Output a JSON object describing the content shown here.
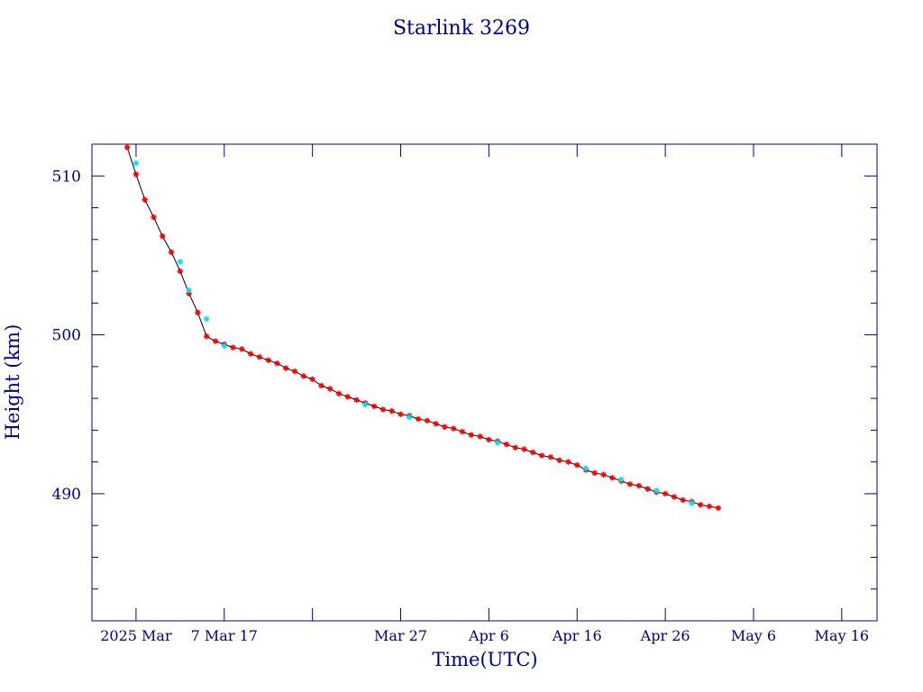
{
  "chart_data": {
    "type": "scatter",
    "title": "Starlink 3269",
    "xlabel": "Time(UTC)",
    "ylabel": "Height (km)",
    "x_unit": "date",
    "xlim": [
      "2025-02-20",
      "2025-05-20"
    ],
    "ylim": [
      482,
      512
    ],
    "x_ticks": [
      {
        "date": "2025-02-25",
        "label": "2025 Mar"
      },
      {
        "date": "2025-03-07",
        "label": "7 Mar 17"
      },
      {
        "date": "2025-03-17",
        "label": ""
      },
      {
        "date": "2025-03-27",
        "label": "Mar 27"
      },
      {
        "date": "2025-04-06",
        "label": "Apr  6"
      },
      {
        "date": "2025-04-16",
        "label": "Apr 16"
      },
      {
        "date": "2025-04-26",
        "label": "Apr 26"
      },
      {
        "date": "2025-05-06",
        "label": "May  6"
      },
      {
        "date": "2025-05-16",
        "label": "May 16"
      }
    ],
    "y_ticks": [
      490,
      500,
      510
    ],
    "y_minor_step": 2,
    "grid": false,
    "colors": {
      "frame": "#00008b",
      "text": "#00008b",
      "line": "#000000",
      "marker_main": "#ff0000",
      "marker_alt": "#00e5ee"
    },
    "series": [
      {
        "marker": "asterisk",
        "color": "#ff0000",
        "points": [
          [
            "2025-02-24",
            511.8
          ],
          [
            "2025-02-25",
            510.1
          ],
          [
            "2025-02-26",
            508.5
          ],
          [
            "2025-02-27",
            507.4
          ],
          [
            "2025-02-28",
            506.2
          ],
          [
            "2025-03-01",
            505.2
          ],
          [
            "2025-03-02",
            504.0
          ],
          [
            "2025-03-03",
            502.6
          ],
          [
            "2025-03-04",
            501.4
          ],
          [
            "2025-03-05",
            499.9
          ],
          [
            "2025-03-06",
            499.6
          ],
          [
            "2025-03-07",
            499.4
          ],
          [
            "2025-03-08",
            499.2
          ],
          [
            "2025-03-09",
            499.1
          ],
          [
            "2025-03-10",
            498.8
          ],
          [
            "2025-03-11",
            498.6
          ],
          [
            "2025-03-12",
            498.4
          ],
          [
            "2025-03-13",
            498.2
          ],
          [
            "2025-03-14",
            497.9
          ],
          [
            "2025-03-15",
            497.7
          ],
          [
            "2025-03-16",
            497.4
          ],
          [
            "2025-03-17",
            497.2
          ],
          [
            "2025-03-18",
            496.8
          ],
          [
            "2025-03-19",
            496.6
          ],
          [
            "2025-03-20",
            496.3
          ],
          [
            "2025-03-21",
            496.1
          ],
          [
            "2025-03-22",
            495.9
          ],
          [
            "2025-03-23",
            495.7
          ],
          [
            "2025-03-24",
            495.5
          ],
          [
            "2025-03-25",
            495.3
          ],
          [
            "2025-03-26",
            495.2
          ],
          [
            "2025-03-27",
            495.0
          ],
          [
            "2025-03-28",
            494.9
          ],
          [
            "2025-03-29",
            494.7
          ],
          [
            "2025-03-30",
            494.6
          ],
          [
            "2025-03-31",
            494.4
          ],
          [
            "2025-04-01",
            494.2
          ],
          [
            "2025-04-02",
            494.1
          ],
          [
            "2025-04-03",
            493.9
          ],
          [
            "2025-04-04",
            493.7
          ],
          [
            "2025-04-05",
            493.6
          ],
          [
            "2025-04-06",
            493.4
          ],
          [
            "2025-04-07",
            493.3
          ],
          [
            "2025-04-08",
            493.1
          ],
          [
            "2025-04-09",
            492.9
          ],
          [
            "2025-04-10",
            492.8
          ],
          [
            "2025-04-11",
            492.6
          ],
          [
            "2025-04-12",
            492.4
          ],
          [
            "2025-04-13",
            492.3
          ],
          [
            "2025-04-14",
            492.1
          ],
          [
            "2025-04-15",
            492.0
          ],
          [
            "2025-04-16",
            491.8
          ],
          [
            "2025-04-17",
            491.5
          ],
          [
            "2025-04-18",
            491.3
          ],
          [
            "2025-04-19",
            491.2
          ],
          [
            "2025-04-20",
            491.0
          ],
          [
            "2025-04-21",
            490.8
          ],
          [
            "2025-04-22",
            490.6
          ],
          [
            "2025-04-23",
            490.5
          ],
          [
            "2025-04-24",
            490.3
          ],
          [
            "2025-04-25",
            490.1
          ],
          [
            "2025-04-26",
            490.0
          ],
          [
            "2025-04-27",
            489.8
          ],
          [
            "2025-04-28",
            489.6
          ],
          [
            "2025-04-29",
            489.5
          ],
          [
            "2025-04-30",
            489.3
          ],
          [
            "2025-05-01",
            489.2
          ],
          [
            "2025-05-02",
            489.1
          ]
        ]
      },
      {
        "marker": "asterisk",
        "color": "#00e5ee",
        "points": [
          [
            "2025-02-25",
            510.8
          ],
          [
            "2025-03-02",
            504.6
          ],
          [
            "2025-03-03",
            502.8
          ],
          [
            "2025-03-05",
            501.0
          ],
          [
            "2025-03-07",
            499.3
          ],
          [
            "2025-03-23",
            495.6
          ],
          [
            "2025-03-28",
            494.8
          ],
          [
            "2025-04-07",
            493.2
          ],
          [
            "2025-04-17",
            491.6
          ],
          [
            "2025-04-21",
            490.9
          ],
          [
            "2025-04-25",
            490.2
          ],
          [
            "2025-04-29",
            489.4
          ]
        ]
      }
    ]
  }
}
